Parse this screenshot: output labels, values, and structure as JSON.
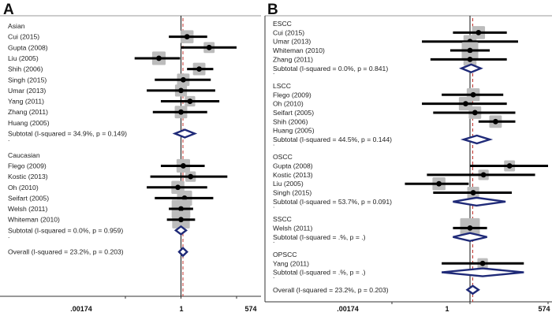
{
  "chart_data": [
    {
      "type": "forest",
      "panel": "A",
      "scale": "log",
      "x_ticks": [
        ".00174",
        "1",
        "574"
      ],
      "x_tick_values": [
        0.00174,
        1,
        574
      ],
      "x_range": [
        0.00174,
        574
      ],
      "reference_line": 1,
      "overall_line": 1.25,
      "groups": [
        {
          "name": "Asian",
          "studies": [
            {
              "label": "Cui (2015)",
              "est": 2.0,
              "lo": 0.25,
              "hi": 20,
              "w": 1.0
            },
            {
              "label": "Gupta (2008)",
              "est": 25,
              "lo": 1.0,
              "hi": 574,
              "w": 0.6
            },
            {
              "label": "Liu (2005)",
              "est": 0.08,
              "lo": 0.005,
              "hi": 0.9,
              "w": 1.1
            },
            {
              "label": "Shih (2006)",
              "est": 8,
              "lo": 2.0,
              "hi": 40,
              "w": 0.9
            },
            {
              "label": "Singh (2015)",
              "est": 1.3,
              "lo": 0.05,
              "hi": 30,
              "w": 0.9
            },
            {
              "label": "Umar (2013)",
              "est": 1.0,
              "lo": 0.02,
              "hi": 50,
              "w": 0.8
            },
            {
              "label": "Yang (2011)",
              "est": 2.8,
              "lo": 0.1,
              "hi": 80,
              "w": 0.5
            },
            {
              "label": "Zhang (2011)",
              "est": 1.0,
              "lo": 0.04,
              "hi": 20,
              "w": 0.9
            },
            {
              "label": "Huang (2005)",
              "est": null,
              "lo": null,
              "hi": null,
              "w": 0
            }
          ],
          "subtotal": {
            "label": "Subtotal  (I-squared = 34.9%, p = 0.149)",
            "est": 1.55,
            "lo": 0.5,
            "hi": 4.8
          }
        },
        {
          "name": "Caucasian",
          "studies": [
            {
              "label": "Flego (2009)",
              "est": 1.3,
              "lo": 0.1,
              "hi": 15,
              "w": 1.1
            },
            {
              "label": "Kostic (2013)",
              "est": 3.0,
              "lo": 0.03,
              "hi": 200,
              "w": 0.5
            },
            {
              "label": "Oh (2010)",
              "est": 0.7,
              "lo": 0.02,
              "hi": 20,
              "w": 1.0
            },
            {
              "label": "Seifart (2005)",
              "est": 1.5,
              "lo": 0.05,
              "hi": 40,
              "w": 1.4
            },
            {
              "label": "Welsh (2011)",
              "est": 1.0,
              "lo": 0.25,
              "hi": 4,
              "w": 2.1
            },
            {
              "label": "Whiteman (2010)",
              "est": 1.0,
              "lo": 0.2,
              "hi": 5,
              "w": 1.9
            }
          ],
          "subtotal": {
            "label": "Subtotal  (I-squared = 0.0%, p = 0.959)",
            "est": 1.0,
            "lo": 0.55,
            "hi": 1.8
          }
        }
      ],
      "overall": {
        "label": "Overall  (I-squared = 23.2%, p = 0.203)",
        "est": 1.25,
        "lo": 0.8,
        "hi": 2.0
      }
    },
    {
      "type": "forest",
      "panel": "B",
      "scale": "log",
      "x_ticks": [
        ".00174",
        "1",
        "574"
      ],
      "x_tick_values": [
        0.00174,
        1,
        574
      ],
      "x_range": [
        0.00174,
        574
      ],
      "reference_line": 1,
      "overall_line": 1.25,
      "groups": [
        {
          "name": "ESCC",
          "studies": [
            {
              "label": "Cui (2015)",
              "est": 2.0,
              "lo": 0.25,
              "hi": 20,
              "w": 1.0
            },
            {
              "label": "Umar (2013)",
              "est": 1.0,
              "lo": 0.02,
              "hi": 50,
              "w": 1.0
            },
            {
              "label": "Whiteman (2010)",
              "est": 1.0,
              "lo": 0.2,
              "hi": 5,
              "w": 1.7
            },
            {
              "label": "Zhang (2011)",
              "est": 1.0,
              "lo": 0.04,
              "hi": 20,
              "w": 1.0
            }
          ],
          "subtotal": {
            "label": "Subtotal  (I-squared = 0.0%, p = 0.841)",
            "est": 1.1,
            "lo": 0.5,
            "hi": 2.4
          }
        },
        {
          "name": "LSCC",
          "studies": [
            {
              "label": "Flego (2009)",
              "est": 1.3,
              "lo": 0.1,
              "hi": 15,
              "w": 1.0
            },
            {
              "label": "Oh (2010)",
              "est": 0.7,
              "lo": 0.02,
              "hi": 20,
              "w": 1.1
            },
            {
              "label": "Seifart (2005)",
              "est": 1.5,
              "lo": 0.05,
              "hi": 40,
              "w": 0.9
            },
            {
              "label": "Shih (2006)",
              "est": 8,
              "lo": 2.0,
              "hi": 40,
              "w": 0.9
            },
            {
              "label": "Huang (2005)",
              "est": null,
              "lo": null,
              "hi": null,
              "w": 0
            }
          ],
          "subtotal": {
            "label": "Subtotal  (I-squared = 44.5%, p = 0.144)",
            "est": 1.75,
            "lo": 0.6,
            "hi": 5.0
          }
        },
        {
          "name": "OSCC",
          "studies": [
            {
              "label": "Gupta (2008)",
              "est": 25,
              "lo": 1.0,
              "hi": 574,
              "w": 0.6
            },
            {
              "label": "Kostic (2013)",
              "est": 3.0,
              "lo": 0.03,
              "hi": 200,
              "w": 0.5
            },
            {
              "label": "Liu (2005)",
              "est": 0.08,
              "lo": 0.005,
              "hi": 0.9,
              "w": 1.0
            },
            {
              "label": "Singh (2015)",
              "est": 1.3,
              "lo": 0.05,
              "hi": 30,
              "w": 0.8
            }
          ],
          "subtotal": {
            "label": "Subtotal  (I-squared = 53.7%, p = 0.091)",
            "est": 1.7,
            "lo": 0.25,
            "hi": 18
          }
        },
        {
          "name": "SSCC",
          "studies": [
            {
              "label": "Welsh (2011)",
              "est": 1.0,
              "lo": 0.25,
              "hi": 4,
              "w": 2.3
            }
          ],
          "subtotal": {
            "label": "Subtotal  (I-squared = .%, p = .)",
            "est": 1.0,
            "lo": 0.25,
            "hi": 4
          }
        },
        {
          "name": "OPSCC",
          "studies": [
            {
              "label": "Yang (2011)",
              "est": 2.8,
              "lo": 0.1,
              "hi": 80,
              "w": 0.5
            }
          ],
          "subtotal": {
            "label": "Subtotal  (I-squared = .%, p = .)",
            "est": 2.8,
            "lo": 0.1,
            "hi": 80
          }
        }
      ],
      "overall": {
        "label": "Overall  (I-squared = 23.2%, p = 0.203)",
        "est": 1.25,
        "lo": 0.8,
        "hi": 2.0
      }
    }
  ]
}
